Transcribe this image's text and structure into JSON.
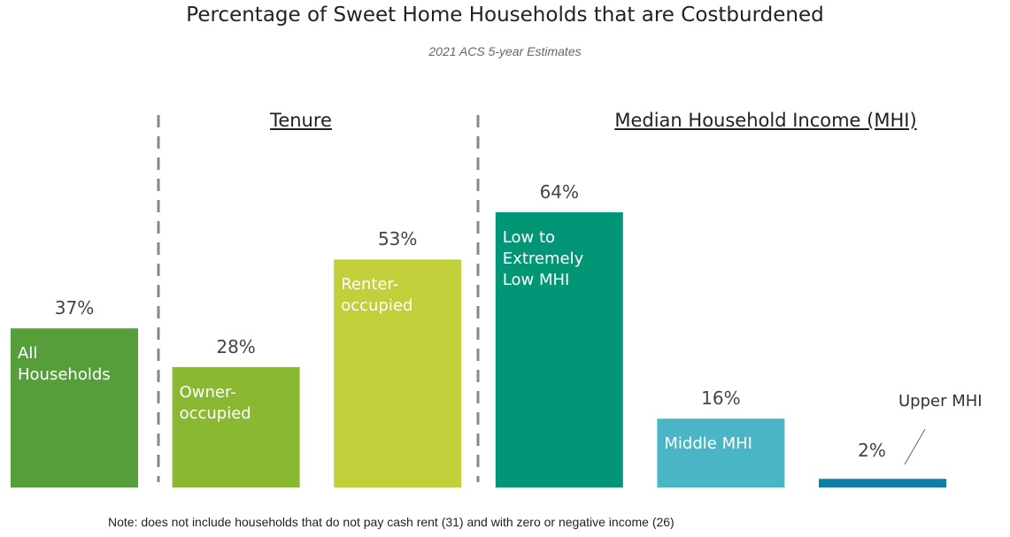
{
  "chart_data": {
    "type": "bar",
    "title": "Percentage of Sweet Home Households that are Costburdened",
    "subtitle": "2021 ACS 5-year Estimates",
    "group_labels": [
      "Tenure",
      "Median Household Income (MHI)"
    ],
    "categories": [
      "All Households",
      "Owner-occupied",
      "Renter-occupied",
      "Low to Extremely Low MHI",
      "Middle MHI",
      "Upper MHI"
    ],
    "values": [
      37,
      28,
      53,
      64,
      16,
      2
    ],
    "value_labels": [
      "37%",
      "28%",
      "53%",
      "64%",
      "16%",
      "2%"
    ],
    "colors": [
      "#559e3a",
      "#8ab833",
      "#c0cf3a",
      "#029676",
      "#4ab5c4",
      "#0f7fa8"
    ],
    "note": "Note: does not include households that do not pay cash rent (31) and with zero or negative income (26)"
  }
}
